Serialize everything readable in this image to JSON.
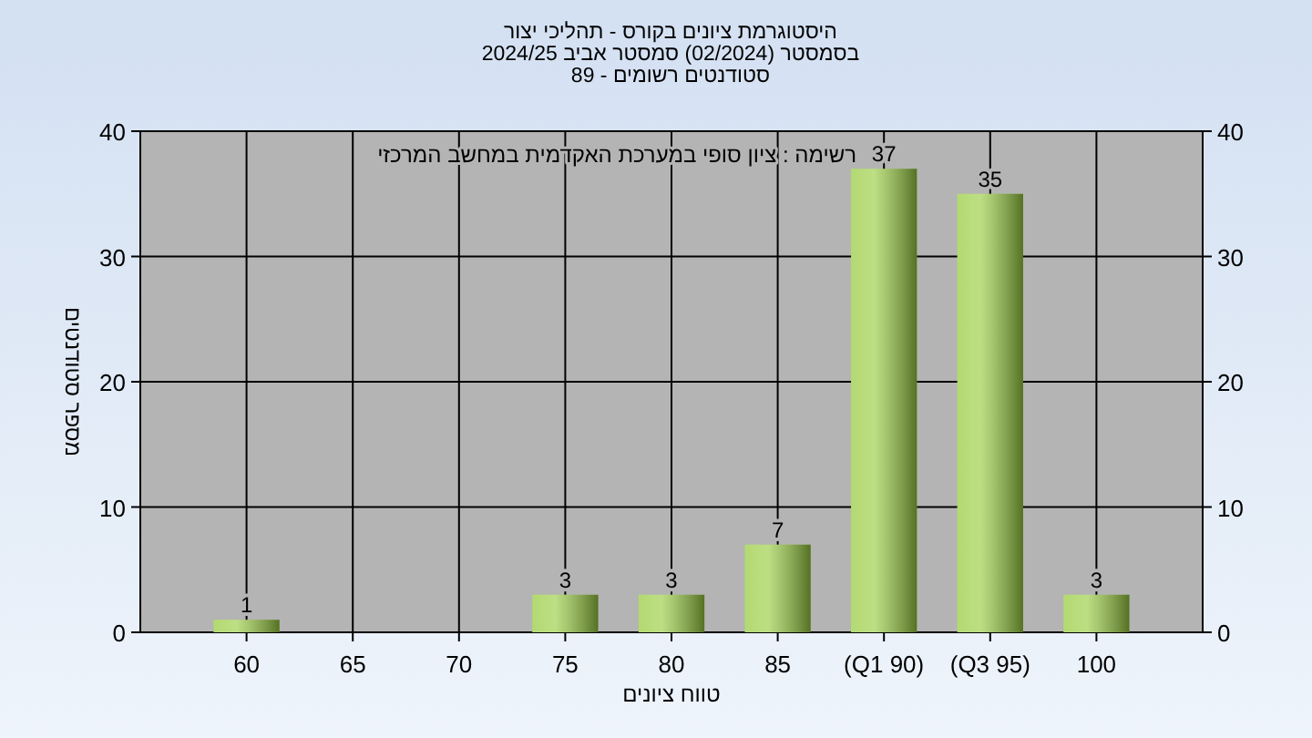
{
  "chart_data": {
    "type": "bar",
    "title": "היסטוגרמת ציונים בקורס - תהליכי יצור",
    "subtitle": "בסמסטר (02/2024) סמסטר אביב 2024/25\nסטודנטים רשומים - 89",
    "xlabel": "טווח ציונים",
    "ylabel": "מספר סטודנטים",
    "annotations": [
      "רשימה : ציון סופי במערכת האקדמית במחשב המרכזי"
    ],
    "categories": [
      "60",
      "65",
      "70",
      "75",
      "80",
      "85",
      "(Q1 90)",
      "(Q3 95)",
      "100"
    ],
    "values": [
      1,
      0,
      0,
      3,
      3,
      7,
      37,
      35,
      3
    ],
    "value_labels": [
      "1",
      null,
      null,
      "3",
      "3",
      "7",
      "37",
      "35",
      "3"
    ],
    "color": "#9acd42",
    "ylim": [
      0,
      40
    ],
    "yticks": [
      0,
      10,
      20,
      30,
      40
    ],
    "y2lim": [
      0,
      40
    ],
    "y2ticks": [
      0,
      10,
      20,
      30,
      40
    ],
    "grid": true
  }
}
